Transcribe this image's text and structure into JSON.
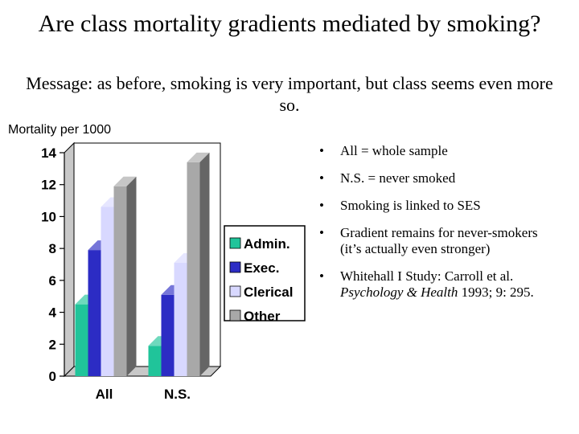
{
  "slide": {
    "title": "Are class mortality gradients  mediated by smoking?",
    "message": "Message: as before, smoking is very important, but class seems even more so."
  },
  "bullets": [
    {
      "text": "All = whole sample"
    },
    {
      "text": "N.S. = never smoked"
    },
    {
      "text": "Smoking is linked to SES"
    },
    {
      "text": "Gradient remains for never-smokers (it’s actually even stronger)"
    },
    {
      "text": "Whitehall I Study: Carroll et al. ",
      "italic": "Psychology & Health",
      "tail": " 1993; 9: 295."
    }
  ],
  "bullet_glyph": "•",
  "chart_data": {
    "type": "bar",
    "ylabel": "Mortality per 1000",
    "ylim": [
      0,
      14
    ],
    "yticks": [
      0,
      2,
      4,
      6,
      8,
      10,
      12,
      14
    ],
    "categories": [
      "All",
      "N.S."
    ],
    "series": [
      {
        "name": "Admin.",
        "color": "#20c49a",
        "values": [
          4.5,
          1.9
        ]
      },
      {
        "name": "Exec.",
        "color": "#2c2cc4",
        "values": [
          7.9,
          5.1
        ]
      },
      {
        "name": "Clerical",
        "color": "#d8d8ff",
        "values": [
          10.6,
          7.1
        ]
      },
      {
        "name": "Other",
        "color": "#a8a8a8",
        "values": [
          11.9,
          13.4
        ]
      }
    ],
    "grid": false,
    "legend": "right"
  }
}
